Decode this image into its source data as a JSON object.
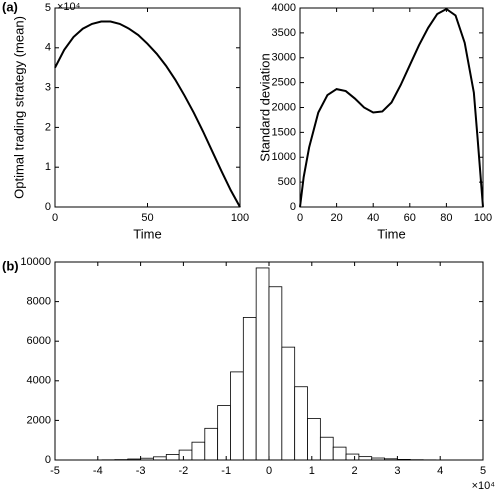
{
  "chart_data": [
    {
      "type": "line",
      "label": "(a)",
      "exponent": "×10⁴",
      "xlabel": "Time",
      "ylabel": "Optimal trading strategy (mean)",
      "x": [
        0,
        5,
        10,
        15,
        20,
        25,
        30,
        35,
        40,
        45,
        50,
        55,
        60,
        65,
        70,
        75,
        80,
        85,
        90,
        95,
        100
      ],
      "values": [
        3.5,
        3.95,
        4.27,
        4.48,
        4.6,
        4.66,
        4.66,
        4.6,
        4.48,
        4.32,
        4.1,
        3.85,
        3.55,
        3.2,
        2.8,
        2.37,
        1.9,
        1.4,
        0.9,
        0.42,
        0
      ],
      "color": "#000000",
      "xlim": [
        0,
        100
      ],
      "xticks": [
        0,
        50,
        100
      ],
      "ylim": [
        0,
        5
      ],
      "yticks": [
        0,
        1,
        2,
        3,
        4,
        5
      ]
    },
    {
      "type": "line",
      "xlabel": "Time",
      "ylabel": "Standard deviation",
      "x": [
        0,
        2,
        5,
        10,
        15,
        20,
        25,
        30,
        35,
        40,
        45,
        50,
        55,
        60,
        65,
        70,
        75,
        80,
        85,
        90,
        95,
        97,
        100
      ],
      "values": [
        0,
        600,
        1200,
        1900,
        2250,
        2370,
        2330,
        2180,
        2000,
        1900,
        1920,
        2100,
        2450,
        2850,
        3250,
        3600,
        3880,
        3980,
        3850,
        3300,
        2300,
        1400,
        0
      ],
      "color": "#000000",
      "xlim": [
        0,
        100
      ],
      "xticks": [
        0,
        20,
        40,
        60,
        80,
        100
      ],
      "ylim": [
        0,
        4000
      ],
      "yticks": [
        0,
        500,
        1000,
        1500,
        2000,
        2500,
        3000,
        3500,
        4000
      ]
    },
    {
      "type": "histogram",
      "label": "(b)",
      "exponent": "×10⁴",
      "bins": [
        -4.5,
        -4.2,
        -3.9,
        -3.6,
        -3.3,
        -3,
        -2.7,
        -2.4,
        -2.1,
        -1.8,
        -1.5,
        -1.2,
        -0.9,
        -0.6,
        -0.3,
        0,
        0.3,
        0.6,
        0.9,
        1.2,
        1.5,
        1.8,
        2.1,
        2.4,
        2.7,
        3,
        3.3,
        3.6,
        3.9,
        4.2,
        4.5
      ],
      "values": [
        2,
        5,
        10,
        20,
        50,
        90,
        160,
        280,
        500,
        900,
        1600,
        2750,
        4450,
        7200,
        9700,
        8750,
        5700,
        3700,
        2100,
        1150,
        650,
        300,
        170,
        100,
        60,
        30,
        15,
        8,
        4,
        2
      ],
      "color": "#ffffff",
      "xlim": [
        -5,
        5
      ],
      "xticks": [
        -5,
        -4,
        -3,
        -2,
        -1,
        0,
        1,
        2,
        3,
        4,
        5
      ],
      "ylim": [
        0,
        10000
      ],
      "yticks": [
        0,
        2000,
        4000,
        6000,
        8000,
        10000
      ]
    }
  ]
}
